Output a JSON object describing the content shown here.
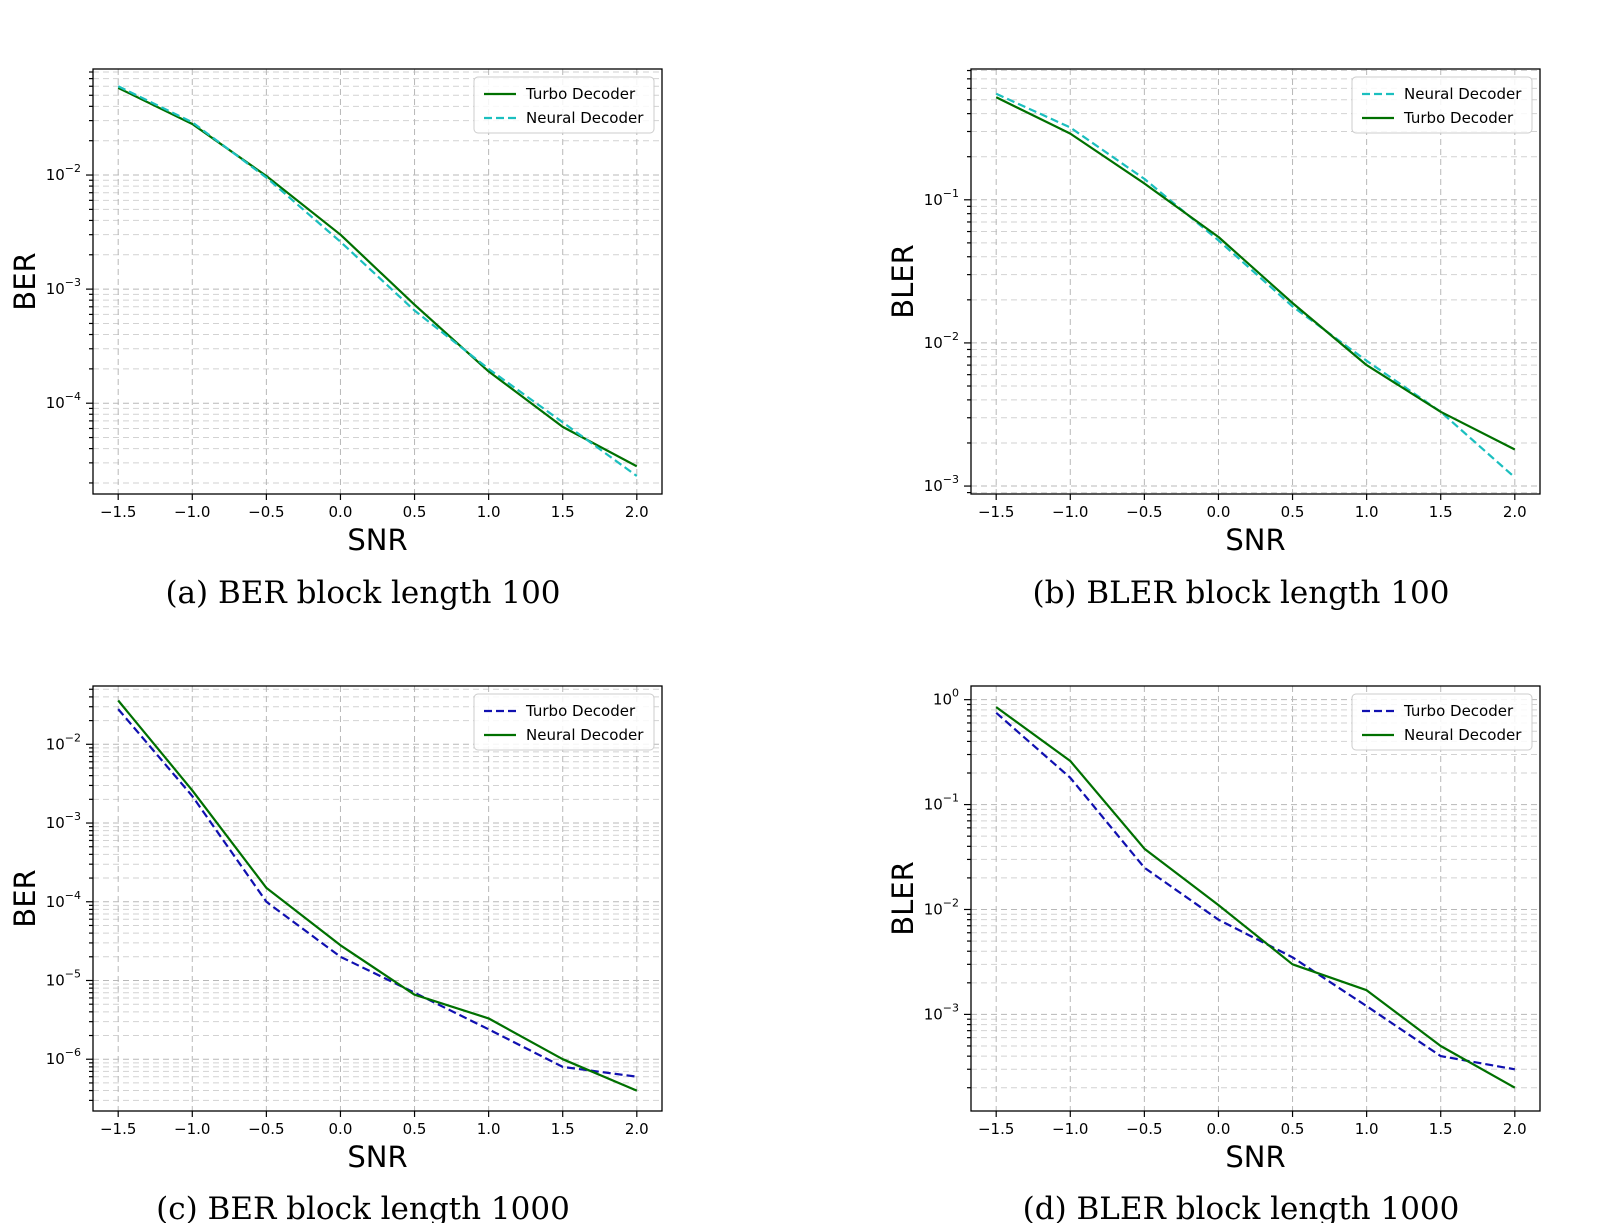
{
  "chart_data": [
    {
      "type": "line",
      "caption": "(a) BER block length 100",
      "xlabel": "SNR",
      "ylabel": "BER",
      "xscale": "linear",
      "yscale": "log",
      "xlim": [
        -1.67,
        2.17
      ],
      "ylim": [
        1.6e-05,
        0.085
      ],
      "x": [
        -1.5,
        -1.0,
        -0.5,
        0.0,
        0.5,
        1.0,
        1.5,
        2.0
      ],
      "xticks": [
        "−1.5",
        "−1.0",
        "−0.5",
        "0.0",
        "0.5",
        "1.0",
        "1.5",
        "2.0"
      ],
      "yticks": [
        {
          "base": "10",
          "exp": "−2",
          "value": 0.01
        },
        {
          "base": "10",
          "exp": "−3",
          "value": 0.001
        },
        {
          "base": "10",
          "exp": "−4",
          "value": 0.0001
        }
      ],
      "grid": true,
      "legend_position": "top-right",
      "series": [
        {
          "name": "Turbo Decoder",
          "color": "#007000",
          "dash": "solid",
          "values": [
            0.058,
            0.028,
            0.0098,
            0.003,
            0.00073,
            0.00019,
            6.2e-05,
            2.8e-05
          ]
        },
        {
          "name": "Neural Decoder",
          "color": "#1bbfbf",
          "dash": "dashed",
          "values": [
            0.06,
            0.029,
            0.0095,
            0.0026,
            0.00065,
            0.0002,
            6.8e-05,
            2.3e-05
          ]
        }
      ]
    },
    {
      "type": "line",
      "caption": "(b) BLER block length 100",
      "xlabel": "SNR",
      "ylabel": "BLER",
      "xscale": "linear",
      "yscale": "log",
      "xlim": [
        -1.67,
        2.17
      ],
      "ylim": [
        0.00088,
        0.82
      ],
      "x": [
        -1.5,
        -1.0,
        -0.5,
        0.0,
        0.5,
        1.0,
        1.5,
        2.0
      ],
      "xticks": [
        "−1.5",
        "−1.0",
        "−0.5",
        "0.0",
        "0.5",
        "1.0",
        "1.5",
        "2.0"
      ],
      "yticks": [
        {
          "base": "10",
          "exp": "−1",
          "value": 0.1
        },
        {
          "base": "10",
          "exp": "−2",
          "value": 0.01
        },
        {
          "base": "10",
          "exp": "−3",
          "value": 0.001
        }
      ],
      "grid": true,
      "legend_position": "top-right",
      "series": [
        {
          "name": "Neural Decoder",
          "color": "#1bbfbf",
          "dash": "dashed",
          "values": [
            0.55,
            0.32,
            0.14,
            0.052,
            0.018,
            0.0075,
            0.0033,
            0.00115
          ]
        },
        {
          "name": "Turbo Decoder",
          "color": "#007000",
          "dash": "solid",
          "values": [
            0.52,
            0.29,
            0.13,
            0.055,
            0.019,
            0.007,
            0.0033,
            0.0018
          ]
        }
      ]
    },
    {
      "type": "line",
      "caption": "(c) BER block length 1000",
      "xlabel": "SNR",
      "ylabel": "BER",
      "xscale": "linear",
      "yscale": "log",
      "xlim": [
        -1.67,
        2.17
      ],
      "ylim": [
        2.2e-07,
        0.055
      ],
      "x": [
        -1.5,
        -1.0,
        -0.5,
        0.0,
        0.5,
        1.0,
        1.5,
        2.0
      ],
      "xticks": [
        "−1.5",
        "−1.0",
        "−0.5",
        "0.0",
        "0.5",
        "1.0",
        "1.5",
        "2.0"
      ],
      "yticks": [
        {
          "base": "10",
          "exp": "−2",
          "value": 0.01
        },
        {
          "base": "10",
          "exp": "−3",
          "value": 0.001
        },
        {
          "base": "10",
          "exp": "−4",
          "value": 0.0001
        },
        {
          "base": "10",
          "exp": "−5",
          "value": 1e-05
        },
        {
          "base": "10",
          "exp": "−6",
          "value": 1e-06
        }
      ],
      "grid": true,
      "legend_position": "top-right",
      "series": [
        {
          "name": "Turbo Decoder",
          "color": "#1010b0",
          "dash": "dashed",
          "values": [
            0.028,
            0.0022,
            0.0001,
            2e-05,
            7e-06,
            2.4e-06,
            8e-07,
            6e-07
          ]
        },
        {
          "name": "Neural Decoder",
          "color": "#007000",
          "dash": "solid",
          "values": [
            0.036,
            0.0026,
            0.00015,
            2.8e-05,
            6.6e-06,
            3.3e-06,
            1e-06,
            4e-07
          ]
        }
      ]
    },
    {
      "type": "line",
      "caption": "(d) BLER block length 1000",
      "xlabel": "SNR",
      "ylabel": "BLER",
      "xscale": "linear",
      "yscale": "log",
      "xlim": [
        -1.67,
        2.17
      ],
      "ylim": [
        0.00012,
        1.35
      ],
      "x": [
        -1.5,
        -1.0,
        -0.5,
        0.0,
        0.5,
        1.0,
        1.5,
        2.0
      ],
      "xticks": [
        "−1.5",
        "−1.0",
        "−0.5",
        "0.0",
        "0.5",
        "1.0",
        "1.5",
        "2.0"
      ],
      "yticks": [
        {
          "base": "10",
          "exp": "0",
          "value": 1
        },
        {
          "base": "10",
          "exp": "−1",
          "value": 0.1
        },
        {
          "base": "10",
          "exp": "−2",
          "value": 0.01
        },
        {
          "base": "10",
          "exp": "−3",
          "value": 0.001
        }
      ],
      "grid": true,
      "legend_position": "top-right",
      "series": [
        {
          "name": "Turbo Decoder",
          "color": "#1010b0",
          "dash": "dashed",
          "values": [
            0.75,
            0.18,
            0.025,
            0.008,
            0.0035,
            0.0012,
            0.0004,
            0.0003
          ]
        },
        {
          "name": "Neural Decoder",
          "color": "#007000",
          "dash": "solid",
          "values": [
            0.85,
            0.26,
            0.038,
            0.011,
            0.003,
            0.0017,
            0.0005,
            0.0002
          ]
        }
      ]
    }
  ]
}
